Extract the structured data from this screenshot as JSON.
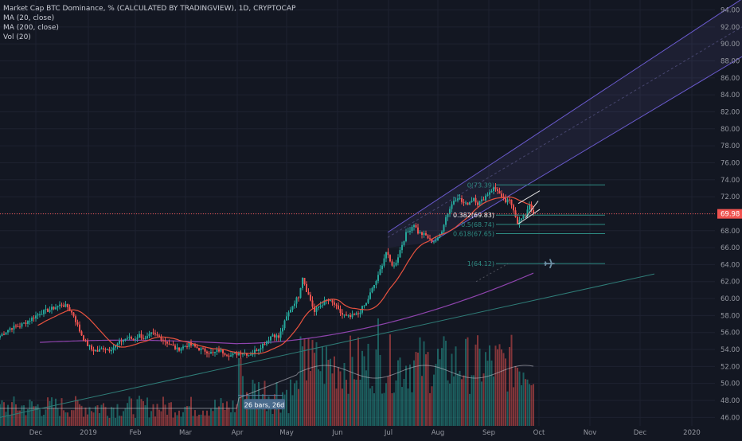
{
  "legend": {
    "main": "Market Cap BTC Dominance, % (CALCULATED BY TRADINGVIEW), 1D, CRYPTOCAP",
    "ma20": "MA (20, close)",
    "ma200": "MA (200, close)",
    "vol": "Vol (20)"
  },
  "colors": {
    "background": "#131722",
    "up": "#26a69a",
    "down": "#ef5350",
    "ma20": "#e8523f",
    "ma200": "#8e44ad",
    "channel": "#6a5acd",
    "trendline": "#2f7d78",
    "price_line": "#ef5350",
    "fib": "#2e8b83"
  },
  "chart_data": {
    "type": "candlestick",
    "ylim": [
      45,
      94.8
    ],
    "y_ticks": [
      "94.00",
      "92.00",
      "90.00",
      "88.00",
      "86.00",
      "84.00",
      "82.00",
      "80.00",
      "78.00",
      "76.00",
      "74.00",
      "72.00",
      "70.00",
      "68.00",
      "66.00",
      "64.00",
      "62.00",
      "60.00",
      "58.00",
      "56.00",
      "54.00",
      "52.00",
      "50.00",
      "48.00",
      "46.00"
    ],
    "x_ticks": [
      "Dec",
      "2019",
      "Feb",
      "Mar",
      "Apr",
      "May",
      "Jun",
      "Jul",
      "Aug",
      "Sep",
      "Oct",
      "Nov",
      "Dec",
      "2020"
    ],
    "last_price": "69.98",
    "fib_levels": [
      {
        "label": "0(73.39)",
        "value": 73.39
      },
      {
        "label": "0.382(69.83)",
        "value": 69.83
      },
      {
        "label": "0.5(68.74)",
        "value": 68.74
      },
      {
        "label": "0.618(67.65)",
        "value": 67.65
      },
      {
        "label": "1(64.12)",
        "value": 64.12
      }
    ],
    "range_label": "26 bars, 26d",
    "price_path": [
      [
        0,
        55.6
      ],
      [
        5,
        56.5
      ],
      [
        10,
        56.8
      ],
      [
        15,
        57.5
      ],
      [
        20,
        58.3
      ],
      [
        25,
        58.7
      ],
      [
        28,
        59.0
      ],
      [
        31,
        59.3
      ],
      [
        34,
        59.0
      ],
      [
        37,
        58.0
      ],
      [
        40,
        56.2
      ],
      [
        43,
        54.8
      ],
      [
        46,
        54.0
      ],
      [
        49,
        53.8
      ],
      [
        52,
        54.2
      ],
      [
        55,
        54.0
      ],
      [
        58,
        54.4
      ],
      [
        61,
        55.0
      ],
      [
        64,
        55.4
      ],
      [
        67,
        55.2
      ],
      [
        70,
        55.7
      ],
      [
        73,
        55.2
      ],
      [
        76,
        55.8
      ],
      [
        80,
        55.5
      ],
      [
        83,
        55.0
      ],
      [
        86,
        54.5
      ],
      [
        89,
        54.0
      ],
      [
        92,
        54.3
      ],
      [
        95,
        54.6
      ],
      [
        98,
        54.3
      ],
      [
        101,
        54.0
      ],
      [
        104,
        53.8
      ],
      [
        107,
        53.5
      ],
      [
        110,
        53.9
      ],
      [
        113,
        53.6
      ],
      [
        116,
        53.3
      ],
      [
        119,
        53.5
      ],
      [
        122,
        53.7
      ],
      [
        125,
        53.4
      ],
      [
        128,
        53.8
      ],
      [
        131,
        54.4
      ],
      [
        134,
        55.0
      ],
      [
        137,
        55.8
      ],
      [
        140,
        55.4
      ],
      [
        142,
        56.6
      ],
      [
        144,
        57.8
      ],
      [
        146,
        58.8
      ],
      [
        148,
        59.6
      ],
      [
        150,
        60.3
      ],
      [
        152,
        62.6
      ],
      [
        154,
        61.0
      ],
      [
        156,
        59.8
      ],
      [
        158,
        58.4
      ],
      [
        160,
        59.0
      ],
      [
        162,
        59.4
      ],
      [
        164,
        59.8
      ],
      [
        166,
        59.6
      ],
      [
        168,
        59.3
      ],
      [
        170,
        58.6
      ],
      [
        172,
        58.1
      ],
      [
        174,
        57.9
      ],
      [
        176,
        57.8
      ],
      [
        178,
        58.0
      ],
      [
        180,
        58.2
      ],
      [
        182,
        58.9
      ],
      [
        184,
        59.4
      ],
      [
        186,
        60.6
      ],
      [
        188,
        61.6
      ],
      [
        190,
        62.6
      ],
      [
        192,
        64.1
      ],
      [
        194,
        65.5
      ],
      [
        196,
        64.3
      ],
      [
        198,
        63.8
      ],
      [
        200,
        65.0
      ],
      [
        202,
        66.4
      ],
      [
        204,
        67.6
      ],
      [
        206,
        68.2
      ],
      [
        208,
        68.8
      ],
      [
        210,
        67.8
      ],
      [
        212,
        67.6
      ],
      [
        214,
        67.4
      ],
      [
        216,
        66.9
      ],
      [
        218,
        66.8
      ],
      [
        220,
        67.0
      ],
      [
        222,
        68.1
      ],
      [
        224,
        69.6
      ],
      [
        226,
        70.6
      ],
      [
        228,
        71.6
      ],
      [
        230,
        72.0
      ],
      [
        232,
        71.4
      ],
      [
        234,
        71.1
      ],
      [
        236,
        71.4
      ],
      [
        238,
        71.9
      ],
      [
        240,
        71.2
      ],
      [
        242,
        71.5
      ],
      [
        244,
        72.1
      ],
      [
        246,
        72.6
      ],
      [
        248,
        73.0
      ],
      [
        250,
        72.8
      ],
      [
        252,
        71.8
      ],
      [
        254,
        71.4
      ],
      [
        256,
        71.5
      ],
      [
        258,
        70.6
      ],
      [
        260,
        68.9
      ],
      [
        262,
        69.4
      ],
      [
        264,
        69.9
      ],
      [
        266,
        71.2
      ],
      [
        268,
        69.98
      ]
    ]
  }
}
